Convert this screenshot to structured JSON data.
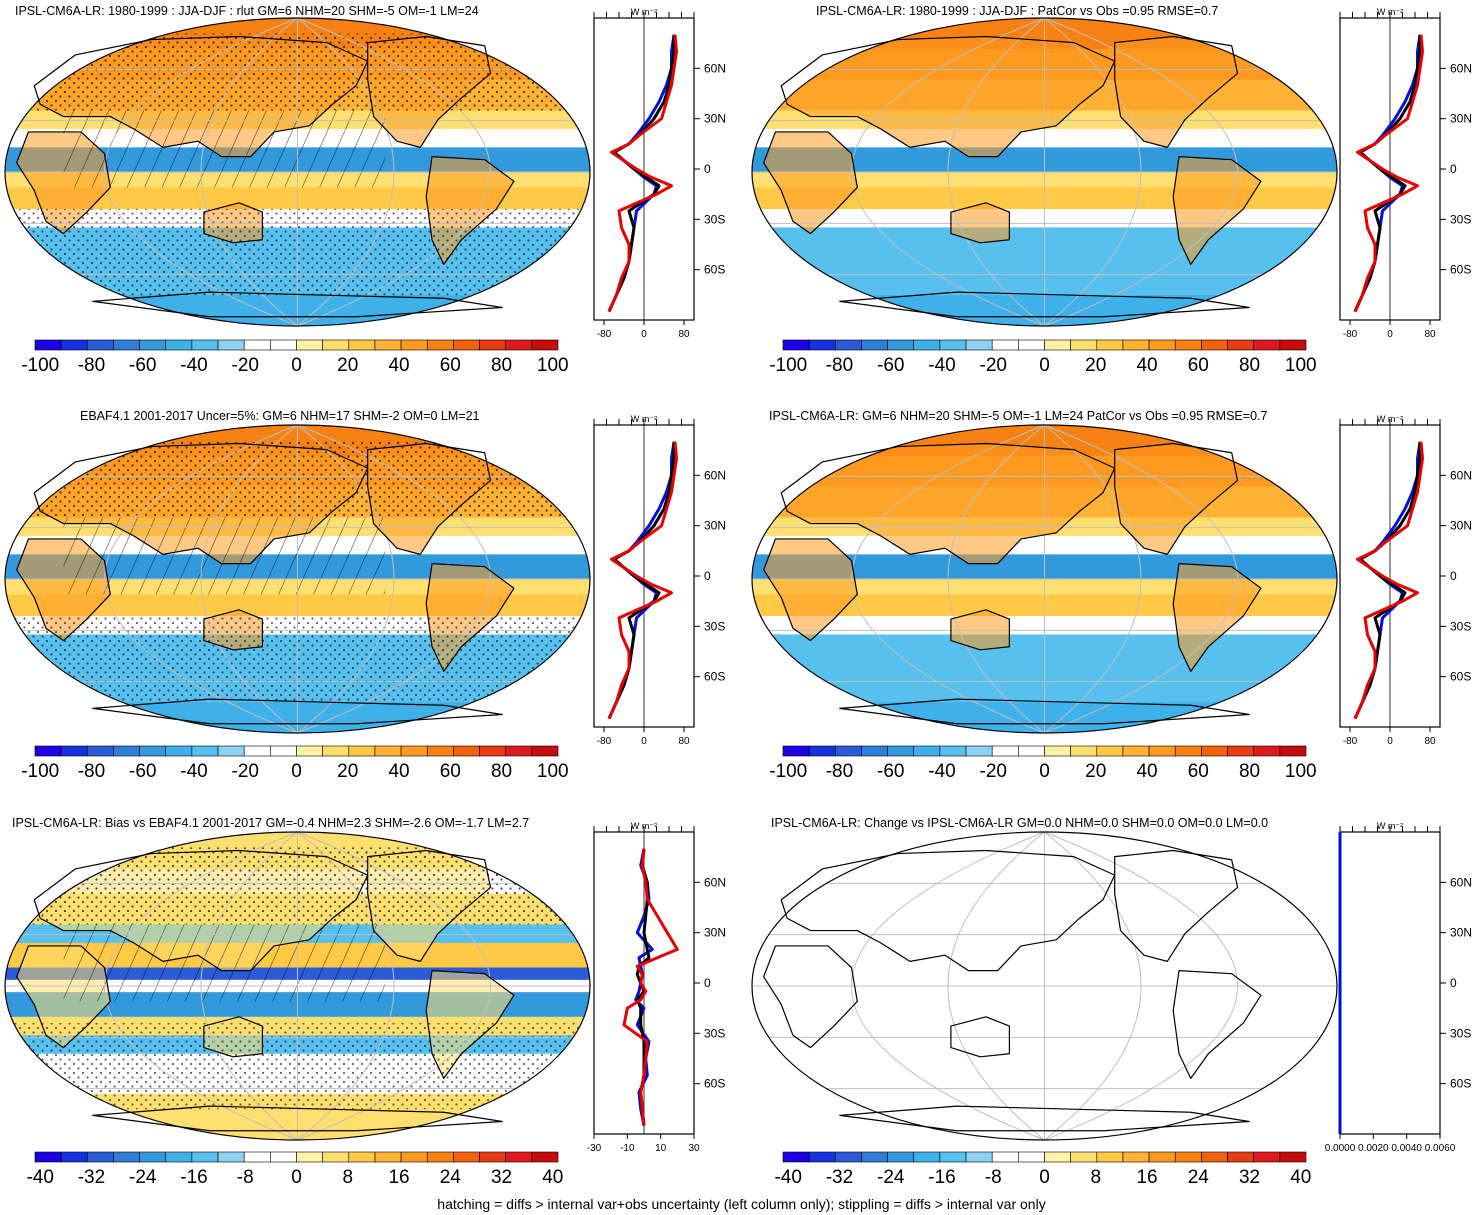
{
  "footnote": "hatching = diffs > internal var+obs uncertainty (left column only); stippling = diffs > internal var only",
  "zonal_unit": "W m⁻²",
  "colors": {
    "scale": [
      "#1d00e6",
      "#1531e0",
      "#2a5cd8",
      "#2f7ed8",
      "#3399dd",
      "#3fb1ea",
      "#57c0ee",
      "#8fd1f0",
      "#ffffff",
      "#ffffff",
      "#fff2a6",
      "#ffdf70",
      "#ffc845",
      "#ffb234",
      "#ff9a20",
      "#f78212",
      "#f2620e",
      "#e83c14",
      "#e0191f",
      "#c80c0c"
    ],
    "model": "#0010d8",
    "obs": "#000000",
    "other": "#e80000",
    "ocean_base": "#8ecbee",
    "land_line": "#000000",
    "grid": "#bfbfbf"
  },
  "panels": [
    {
      "id": "p1",
      "title": "IPSL-CM6A-LR: 1980-1999 : JJA-DJF : rlut GM=6 NHM=20 SHM=-5 OM=-1 LM=24",
      "colorbar_labels": [
        "-100",
        "-80",
        "-60",
        "-40",
        "-20",
        "0",
        "20",
        "40",
        "60",
        "80",
        "100"
      ],
      "zonal_ticks": [
        "-80",
        "0",
        "80"
      ],
      "lat_labels": [
        "60N",
        "30N",
        "0",
        "30S",
        "60S"
      ],
      "hatched": true,
      "stippled": true,
      "style": "mean"
    },
    {
      "id": "p2",
      "title": "IPSL-CM6A-LR: 1980-1999 : JJA-DJF : PatCor vs Obs =0.95 RMSE=0.7",
      "colorbar_labels": [
        "-100",
        "-80",
        "-60",
        "-40",
        "-20",
        "0",
        "20",
        "40",
        "60",
        "80",
        "100"
      ],
      "zonal_ticks": [
        "-80",
        "0",
        "80"
      ],
      "lat_labels": [
        "60N",
        "30N",
        "0",
        "30S",
        "60S"
      ],
      "hatched": false,
      "stippled": false,
      "style": "mean"
    },
    {
      "id": "p3",
      "title": "EBAF4.1 2001-2017 Uncer=5%: GM=6 NHM=17 SHM=-2 OM=0 LM=21",
      "colorbar_labels": [
        "-100",
        "-80",
        "-60",
        "-40",
        "-20",
        "0",
        "20",
        "40",
        "60",
        "80",
        "100"
      ],
      "zonal_ticks": [
        "-80",
        "0",
        "80"
      ],
      "lat_labels": [
        "60N",
        "30N",
        "0",
        "30S",
        "60S"
      ],
      "hatched": true,
      "stippled": true,
      "style": "mean"
    },
    {
      "id": "p4",
      "title": "IPSL-CM6A-LR: GM=6 NHM=20 SHM=-5 OM=-1 LM=24 PatCor vs Obs =0.95 RMSE=0.7",
      "colorbar_labels": [
        "-100",
        "-80",
        "-60",
        "-40",
        "-20",
        "0",
        "20",
        "40",
        "60",
        "80",
        "100"
      ],
      "zonal_ticks": [
        "-80",
        "0",
        "80"
      ],
      "lat_labels": [
        "60N",
        "30N",
        "0",
        "30S",
        "60S"
      ],
      "hatched": false,
      "stippled": false,
      "style": "mean"
    },
    {
      "id": "p5",
      "title": "IPSL-CM6A-LR: Bias vs EBAF4.1 2001-2017 GM=-0.4 NHM=2.3 SHM=-2.6 OM=-1.7 LM=2.7",
      "colorbar_labels": [
        "-40",
        "-32",
        "-24",
        "-16",
        "-8",
        "0",
        "8",
        "16",
        "24",
        "32",
        "40"
      ],
      "zonal_ticks": [
        "-30",
        "-10",
        "10",
        "30"
      ],
      "lat_labels": [
        "60N",
        "30N",
        "0",
        "30S",
        "60S"
      ],
      "hatched": true,
      "stippled": true,
      "style": "bias"
    },
    {
      "id": "p6",
      "title": "IPSL-CM6A-LR: Change vs IPSL-CM6A-LR GM=0.0 NHM=0.0 SHM=0.0 OM=0.0 LM=0.0",
      "colorbar_labels": [
        "-40",
        "-32",
        "-24",
        "-16",
        "-8",
        "0",
        "8",
        "16",
        "24",
        "32",
        "40"
      ],
      "zonal_ticks": [
        "0.0000",
        "0.0020",
        "0.0040",
        "0.0060"
      ],
      "lat_labels": [
        "60N",
        "30N",
        "0",
        "30S",
        "60S"
      ],
      "hatched": false,
      "stippled": false,
      "style": "blank"
    }
  ],
  "chart_data": [
    {
      "type": "heatmap",
      "panel": "p1",
      "title": "IPSL-CM6A-LR: 1980-1999 : JJA-DJF : rlut GM=6 NHM=20 SHM=-5 OM=-1 LM=24",
      "colorbar_range": [
        -100,
        100
      ],
      "colorbar_step": 10,
      "zonal_profile": {
        "x_range": [
          -100,
          100
        ],
        "y_range": [
          -90,
          90
        ],
        "lat": [
          -85,
          -75,
          -65,
          -55,
          -45,
          -35,
          -25,
          -15,
          -10,
          -5,
          0,
          5,
          10,
          15,
          20,
          30,
          40,
          50,
          60,
          70,
          80
        ],
        "series": [
          {
            "values": [
              -70,
              -55,
              -40,
              -30,
              -25,
              -20,
              -15,
              20,
              25,
              0,
              -20,
              -40,
              -60,
              -30,
              -15,
              10,
              30,
              45,
              55,
              55,
              60
            ]
          },
          {
            "values": [
              -70,
              -55,
              -40,
              -30,
              -25,
              -20,
              -30,
              20,
              30,
              5,
              -20,
              -40,
              -60,
              -30,
              -10,
              20,
              40,
              50,
              55,
              60,
              60
            ]
          },
          {
            "values": [
              -70,
              -55,
              -45,
              -30,
              -30,
              -45,
              -50,
              25,
              55,
              15,
              -15,
              -40,
              -65,
              -30,
              -10,
              35,
              45,
              55,
              60,
              65,
              62
            ]
          }
        ]
      }
    },
    {
      "type": "heatmap",
      "panel": "p2",
      "title": "IPSL-CM6A-LR: 1980-1999 : JJA-DJF : PatCor vs Obs =0.95 RMSE=0.7",
      "colorbar_range": [
        -100,
        100
      ],
      "colorbar_step": 10,
      "zonal_profile": {
        "x_range": [
          -100,
          100
        ],
        "y_range": [
          -90,
          90
        ],
        "lat": [
          -85,
          -75,
          -65,
          -55,
          -45,
          -35,
          -25,
          -15,
          -10,
          -5,
          0,
          5,
          10,
          15,
          20,
          30,
          40,
          50,
          60,
          70,
          80
        ],
        "series": [
          {
            "values": [
              -70,
              -55,
              -40,
              -30,
              -25,
              -20,
              -15,
              20,
              25,
              0,
              -20,
              -40,
              -60,
              -30,
              -15,
              10,
              30,
              45,
              55,
              55,
              60
            ]
          },
          {
            "values": [
              -70,
              -55,
              -40,
              -30,
              -25,
              -20,
              -30,
              20,
              30,
              5,
              -20,
              -40,
              -60,
              -30,
              -10,
              20,
              40,
              50,
              55,
              60,
              60
            ]
          },
          {
            "values": [
              -70,
              -55,
              -45,
              -30,
              -30,
              -45,
              -50,
              25,
              55,
              15,
              -15,
              -40,
              -65,
              -30,
              -10,
              35,
              45,
              55,
              60,
              65,
              62
            ]
          }
        ]
      }
    },
    {
      "type": "heatmap",
      "panel": "p3",
      "title": "EBAF4.1 2001-2017 Uncer=5%: GM=6 NHM=17 SHM=-2 OM=0 LM=21",
      "colorbar_range": [
        -100,
        100
      ],
      "colorbar_step": 10,
      "zonal_profile": {
        "x_range": [
          -100,
          100
        ],
        "y_range": [
          -90,
          90
        ],
        "lat": [
          -85,
          -75,
          -65,
          -55,
          -45,
          -35,
          -25,
          -15,
          -10,
          -5,
          0,
          5,
          10,
          15,
          20,
          30,
          40,
          50,
          60,
          70,
          80
        ],
        "series": [
          {
            "values": [
              -70,
              -55,
              -40,
              -30,
              -25,
              -20,
              -15,
              20,
              25,
              0,
              -20,
              -40,
              -60,
              -30,
              -15,
              10,
              30,
              45,
              55,
              55,
              60
            ]
          },
          {
            "values": [
              -70,
              -55,
              -40,
              -30,
              -25,
              -20,
              -30,
              20,
              30,
              5,
              -20,
              -40,
              -60,
              -30,
              -10,
              20,
              40,
              50,
              55,
              60,
              60
            ]
          },
          {
            "values": [
              -70,
              -55,
              -45,
              -30,
              -30,
              -45,
              -50,
              25,
              55,
              15,
              -15,
              -40,
              -65,
              -30,
              -10,
              35,
              45,
              55,
              60,
              65,
              62
            ]
          }
        ]
      }
    },
    {
      "type": "heatmap",
      "panel": "p4",
      "title": "IPSL-CM6A-LR: GM=6 NHM=20 SHM=-5 OM=-1 LM=24 PatCor vs Obs =0.95 RMSE=0.7",
      "colorbar_range": [
        -100,
        100
      ],
      "colorbar_step": 10,
      "zonal_profile": {
        "x_range": [
          -100,
          100
        ],
        "y_range": [
          -90,
          90
        ],
        "lat": [
          -85,
          -75,
          -65,
          -55,
          -45,
          -35,
          -25,
          -15,
          -10,
          -5,
          0,
          5,
          10,
          15,
          20,
          30,
          40,
          50,
          60,
          70,
          80
        ],
        "series": [
          {
            "values": [
              -70,
              -55,
              -40,
              -30,
              -25,
              -20,
              -15,
              20,
              25,
              0,
              -20,
              -40,
              -60,
              -30,
              -15,
              10,
              30,
              45,
              55,
              55,
              60
            ]
          },
          {
            "values": [
              -70,
              -55,
              -40,
              -30,
              -25,
              -20,
              -30,
              20,
              30,
              5,
              -20,
              -40,
              -60,
              -30,
              -10,
              20,
              40,
              50,
              55,
              60,
              60
            ]
          },
          {
            "values": [
              -70,
              -55,
              -45,
              -30,
              -30,
              -45,
              -50,
              25,
              55,
              15,
              -15,
              -40,
              -65,
              -30,
              -10,
              35,
              45,
              55,
              60,
              65,
              62
            ]
          }
        ]
      }
    },
    {
      "type": "heatmap",
      "panel": "p5",
      "title": "IPSL-CM6A-LR: Bias vs EBAF4.1 2001-2017 GM=-0.4 NHM=2.3 SHM=-2.6 OM=-1.7 LM=2.7",
      "colorbar_range": [
        -40,
        40
      ],
      "colorbar_step": 4,
      "zonal_profile": {
        "x_range": [
          -30,
          30
        ],
        "y_range": [
          -90,
          90
        ],
        "lat": [
          -85,
          -75,
          -65,
          -55,
          -45,
          -35,
          -25,
          -15,
          -10,
          -5,
          0,
          5,
          10,
          15,
          20,
          30,
          40,
          50,
          60,
          70,
          80
        ],
        "series": [
          {
            "values": [
              0,
              -2,
              -3,
              2,
              1,
              3,
              -4,
              0,
              -5,
              -3,
              -2,
              -1,
              -2,
              -3,
              5,
              -4,
              0,
              3,
              2,
              -2,
              0
            ]
          },
          {
            "values": [
              0,
              -1,
              -2,
              0,
              0,
              0,
              -2,
              -2,
              -4,
              0,
              -2,
              -4,
              -3,
              3,
              2,
              0,
              1,
              2,
              2,
              -1,
              0
            ]
          },
          {
            "values": [
              0,
              -1,
              -2,
              0,
              1,
              2,
              -12,
              -10,
              -2,
              1,
              -2,
              -1,
              -4,
              8,
              20,
              14,
              8,
              2,
              1,
              -1,
              0
            ]
          }
        ]
      }
    },
    {
      "type": "heatmap",
      "panel": "p6",
      "title": "IPSL-CM6A-LR: Change vs IPSL-CM6A-LR GM=0.0 NHM=0.0 SHM=0.0 OM=0.0 LM=0.0",
      "colorbar_range": [
        -40,
        40
      ],
      "colorbar_step": 4,
      "zonal_profile": {
        "x_range": [
          0,
          0.006
        ],
        "y_range": [
          -90,
          90
        ],
        "lat": [
          -90,
          90
        ],
        "series": [
          {
            "values": [
              0,
              0
            ]
          }
        ]
      }
    }
  ]
}
